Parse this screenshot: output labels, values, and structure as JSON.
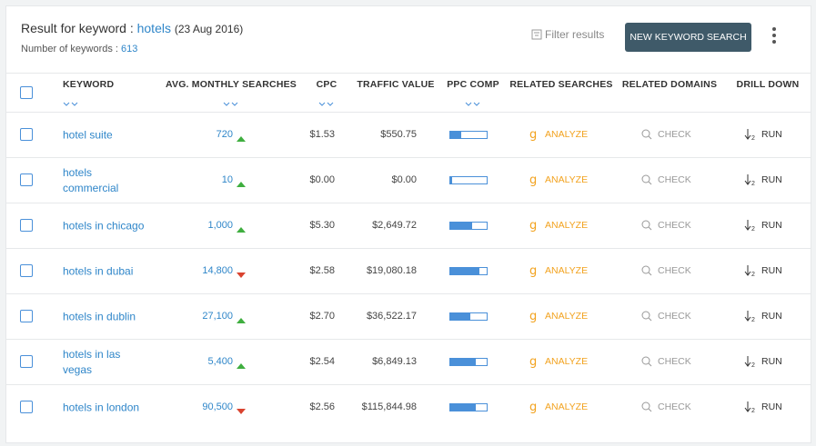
{
  "header": {
    "title": "Result for keyword :",
    "keyword": "hotels",
    "date": "(23 Aug 2016)",
    "count_label": "Number of keywords :",
    "count": 613,
    "filter": "Filter results",
    "new_search": "NEW KEYWORD SEARCH"
  },
  "table": {
    "columns": [
      "KEYWORD",
      "AVG. MONTHLY SEARCHES",
      "CPC",
      "TRAFFIC VALUE",
      "PPC COMP",
      "RELATED SEARCHES",
      "RELATED DOMAINS",
      "DRILL DOWN"
    ],
    "rows": [
      {
        "keyword": "hotel suite",
        "searches": "720",
        "trend": "up",
        "cpc": "$1.53",
        "traffic": "$550.75",
        "ppc_comp": 0.3,
        "analyze": "ANALYZE",
        "check": "CHECK",
        "run": "RUN"
      },
      {
        "keyword": "hotels commercial",
        "searches": "10",
        "trend": "up",
        "cpc": "$0.00",
        "traffic": "$0.00",
        "ppc_comp": 0.05,
        "analyze": "ANALYZE",
        "check": "CHECK",
        "run": "RUN"
      },
      {
        "keyword": "hotels in chicago",
        "searches": "1,000",
        "trend": "up",
        "cpc": "$5.30",
        "traffic": "$2,649.72",
        "ppc_comp": 0.6,
        "analyze": "ANALYZE",
        "check": "CHECK",
        "run": "RUN"
      },
      {
        "keyword": "hotels in dubai",
        "searches": "14,800",
        "trend": "down",
        "cpc": "$2.58",
        "traffic": "$19,080.18",
        "ppc_comp": 0.8,
        "analyze": "ANALYZE",
        "check": "CHECK",
        "run": "RUN"
      },
      {
        "keyword": "hotels in dublin",
        "searches": "27,100",
        "trend": "up",
        "cpc": "$2.70",
        "traffic": "$36,522.17",
        "ppc_comp": 0.55,
        "analyze": "ANALYZE",
        "check": "CHECK",
        "run": "RUN"
      },
      {
        "keyword": "hotels in las vegas",
        "searches": "5,400",
        "trend": "up",
        "cpc": "$2.54",
        "traffic": "$6,849.13",
        "ppc_comp": 0.7,
        "analyze": "ANALYZE",
        "check": "CHECK",
        "run": "RUN"
      },
      {
        "keyword": "hotels in london",
        "searches": "90,500",
        "trend": "down",
        "cpc": "$2.56",
        "traffic": "$115,844.98",
        "ppc_comp": 0.7,
        "analyze": "ANALYZE",
        "check": "CHECK",
        "run": "RUN"
      }
    ]
  }
}
